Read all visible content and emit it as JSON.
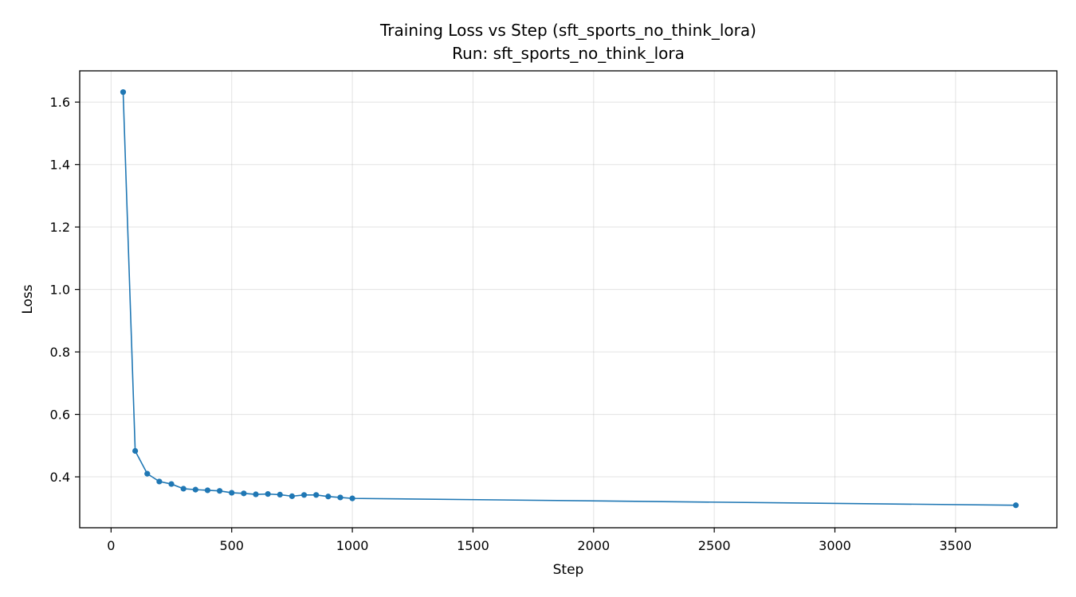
{
  "chart_data": {
    "type": "line",
    "title": "Training Loss vs Step (sft_sports_no_think_lora)",
    "subtitle": "Run: sft_sports_no_think_lora",
    "xlabel": "Step",
    "ylabel": "Loss",
    "xlim": [
      -130,
      3920
    ],
    "ylim": [
      0.237,
      1.7
    ],
    "xticks": [
      0,
      500,
      1000,
      1500,
      2000,
      2500,
      3000,
      3500
    ],
    "yticks": [
      0.4,
      0.6,
      0.8,
      1.0,
      1.2,
      1.4,
      1.6
    ],
    "ytick_labels": [
      "0.4",
      "0.6",
      "0.8",
      "1.0",
      "1.2",
      "1.4",
      "1.6"
    ],
    "grid": true,
    "series": [
      {
        "color": "#1f77b4",
        "x": [
          50,
          100,
          150,
          200,
          250,
          300,
          350,
          400,
          450,
          500,
          550,
          600,
          650,
          700,
          750,
          800,
          850,
          900,
          950,
          1000,
          3750
        ],
        "y": [
          1.632,
          0.483,
          0.41,
          0.385,
          0.377,
          0.362,
          0.359,
          0.357,
          0.355,
          0.349,
          0.347,
          0.344,
          0.345,
          0.343,
          0.338,
          0.342,
          0.342,
          0.337,
          0.334,
          0.331,
          0.309
        ]
      }
    ]
  }
}
